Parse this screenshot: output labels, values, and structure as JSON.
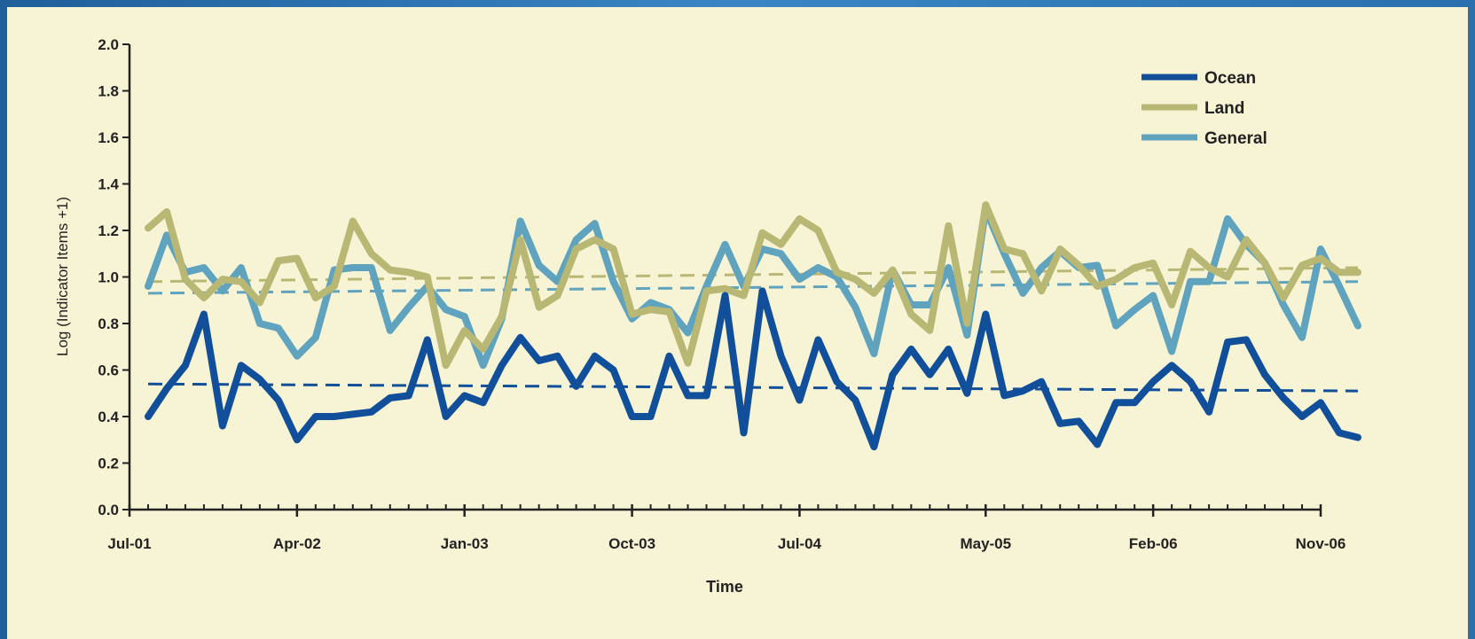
{
  "chart_data": {
    "type": "line",
    "title": "",
    "xlabel": "Time",
    "ylabel": "Log (Indicator Items +1)",
    "ylim": [
      0.0,
      2.0
    ],
    "yticks": [
      "0.0",
      "0.2",
      "0.4",
      "0.6",
      "0.8",
      "1.0",
      "1.2",
      "1.4",
      "1.6",
      "1.8",
      "2.0"
    ],
    "x_start": "Aug-01",
    "x_step": "1 month",
    "xticks": [
      "Jul-01",
      "Apr-02",
      "Jan-03",
      "Oct-03",
      "Jul-04",
      "May-05",
      "Feb-06",
      "Nov-06"
    ],
    "legend_position": "top-right",
    "grid": false,
    "series": [
      {
        "name": "Ocean",
        "color": "#114f9a",
        "values": [
          0.4,
          0.52,
          0.62,
          0.84,
          0.36,
          0.62,
          0.56,
          0.47,
          0.3,
          0.4,
          0.4,
          0.41,
          0.42,
          0.48,
          0.49,
          0.73,
          0.4,
          0.49,
          0.46,
          0.62,
          0.74,
          0.64,
          0.66,
          0.53,
          0.66,
          0.6,
          0.4,
          0.4,
          0.66,
          0.49,
          0.49,
          0.92,
          0.33,
          0.94,
          0.66,
          0.47,
          0.73,
          0.55,
          0.47,
          0.27,
          0.58,
          0.69,
          0.58,
          0.69,
          0.5,
          0.84,
          0.49,
          0.51,
          0.55,
          0.37,
          0.38,
          0.28,
          0.46,
          0.46,
          0.55,
          0.62,
          0.55,
          0.42,
          0.72,
          0.73,
          0.58,
          0.48,
          0.4,
          0.46,
          0.33,
          0.31
        ],
        "trend": [
          0.54,
          0.51
        ]
      },
      {
        "name": "Land",
        "color": "#b9b774",
        "values": [
          1.21,
          1.28,
          0.99,
          0.91,
          0.99,
          0.98,
          0.89,
          1.07,
          1.08,
          0.91,
          0.96,
          1.24,
          1.1,
          1.03,
          1.02,
          1.0,
          0.62,
          0.77,
          0.69,
          0.83,
          1.16,
          0.87,
          0.92,
          1.12,
          1.16,
          1.12,
          0.84,
          0.86,
          0.85,
          0.63,
          0.94,
          0.95,
          0.92,
          1.19,
          1.14,
          1.25,
          1.2,
          1.02,
          0.99,
          0.93,
          1.03,
          0.84,
          0.77,
          1.22,
          0.8,
          1.31,
          1.12,
          1.1,
          0.94,
          1.12,
          1.05,
          0.96,
          0.99,
          1.04,
          1.06,
          0.88,
          1.11,
          1.04,
          1.0,
          1.16,
          1.06,
          0.91,
          1.05,
          1.08,
          1.02,
          1.02
        ],
        "trend": [
          0.98,
          1.04
        ]
      },
      {
        "name": "General",
        "color": "#5fa3be",
        "values": [
          0.96,
          1.18,
          1.02,
          1.04,
          0.94,
          1.04,
          0.8,
          0.78,
          0.66,
          0.74,
          1.03,
          1.04,
          1.04,
          0.77,
          0.87,
          0.96,
          0.86,
          0.83,
          0.62,
          0.82,
          1.24,
          1.05,
          0.98,
          1.16,
          1.23,
          0.98,
          0.82,
          0.89,
          0.86,
          0.76,
          0.96,
          1.14,
          0.96,
          1.12,
          1.1,
          0.99,
          1.04,
          1.0,
          0.87,
          0.67,
          1.03,
          0.88,
          0.88,
          1.04,
          0.75,
          1.29,
          1.1,
          0.93,
          1.04,
          1.11,
          1.04,
          1.05,
          0.79,
          0.86,
          0.92,
          0.68,
          0.98,
          0.98,
          1.25,
          1.14,
          1.06,
          0.88,
          0.74,
          1.12,
          0.96,
          0.79
        ],
        "trend": [
          0.93,
          0.98
        ]
      }
    ]
  }
}
